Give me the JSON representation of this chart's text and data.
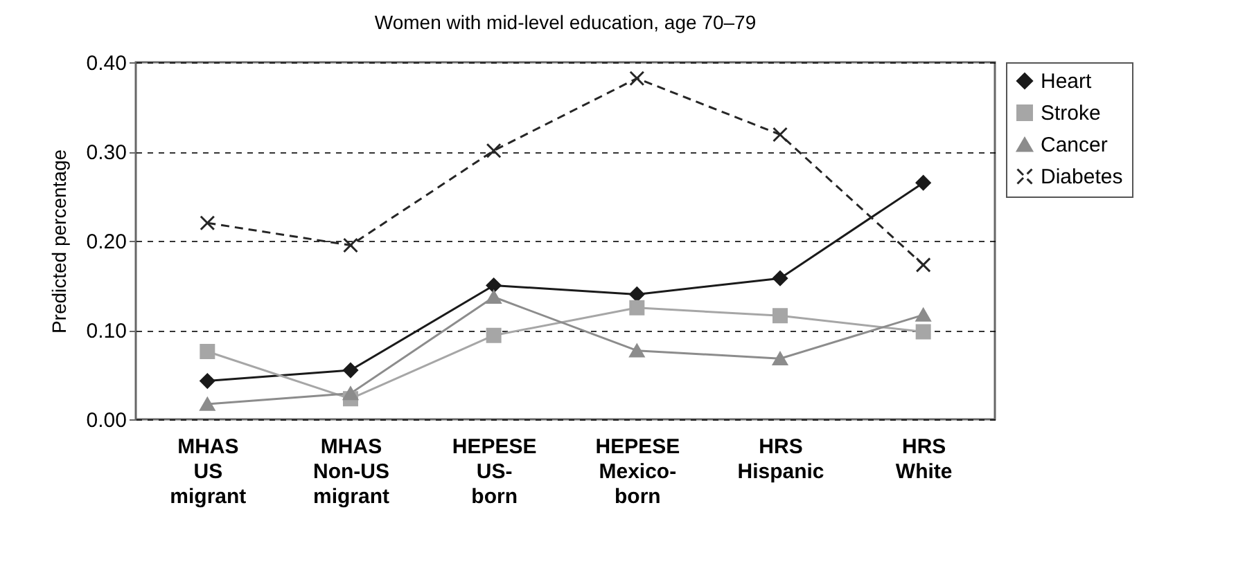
{
  "chart_data": {
    "type": "line",
    "title": "Women with mid-level education, age 70–79",
    "ylabel": "Predicted percentage",
    "categories": [
      "MHAS\nUS\nmigrant",
      "MHAS\nNon-US\nmigrant",
      "HEPESE\nUS-\nborn",
      "HEPESE\nMexico-\nborn",
      "HRS\nHispanic",
      "HRS\nWhite"
    ],
    "ylim": [
      0,
      0.4
    ],
    "yticks": [
      {
        "value": 0,
        "label": "0.00"
      },
      {
        "value": 0.1,
        "label": "0.10"
      },
      {
        "value": 0.2,
        "label": "0.20"
      },
      {
        "value": 0.3,
        "label": "0.30"
      },
      {
        "value": 0.4,
        "label": "0.40"
      }
    ],
    "grid": "y",
    "legend": "right",
    "series": [
      {
        "name": "Heart",
        "color": "#1a1a1a",
        "marker": "diamond",
        "line_style": "solid",
        "values": [
          0.043,
          0.055,
          0.15,
          0.14,
          0.158,
          0.265
        ]
      },
      {
        "name": "Stroke",
        "color": "#a6a6a6",
        "marker": "square",
        "line_style": "solid",
        "values": [
          0.076,
          0.023,
          0.094,
          0.125,
          0.116,
          0.098
        ]
      },
      {
        "name": "Cancer",
        "color": "#8c8c8c",
        "marker": "triangle",
        "line_style": "solid",
        "values": [
          0.017,
          0.029,
          0.137,
          0.077,
          0.068,
          0.117
        ]
      },
      {
        "name": "Diabetes",
        "color": "#262626",
        "marker": "cross",
        "line_style": "dashed",
        "values": [
          0.22,
          0.195,
          0.301,
          0.382,
          0.319,
          0.173
        ]
      }
    ]
  }
}
